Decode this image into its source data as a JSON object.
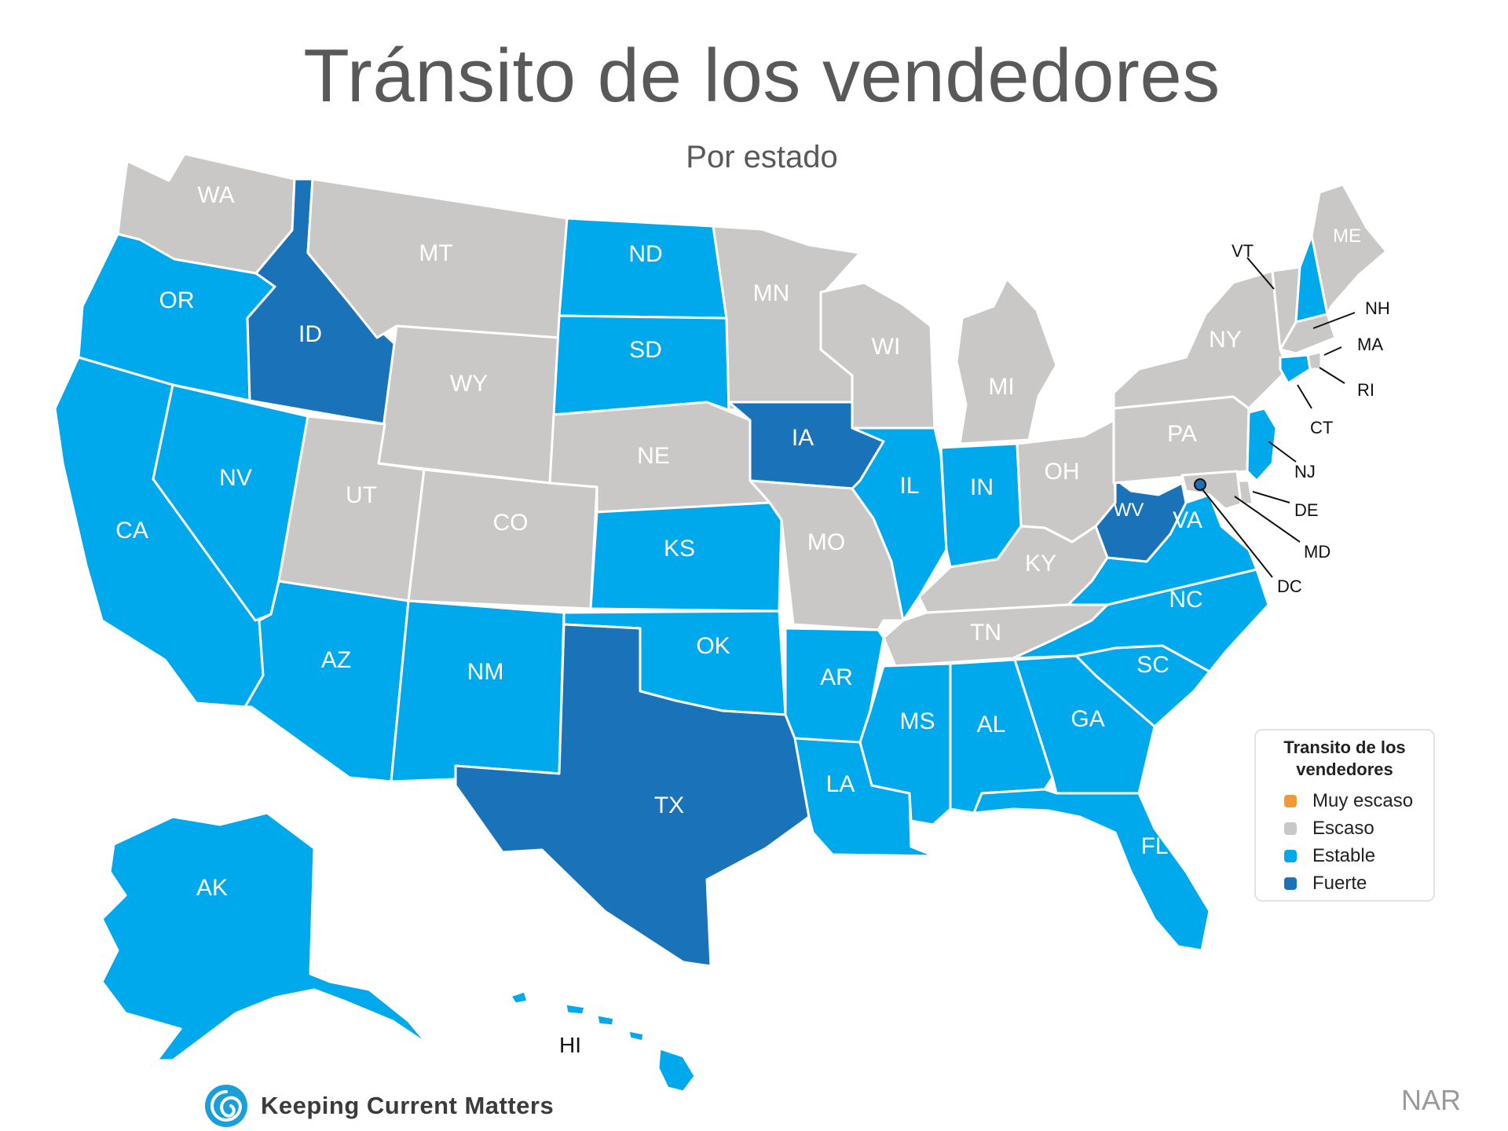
{
  "title": "Tránsito de los vendedores",
  "subtitle": "Por estado",
  "colors": {
    "muy_escaso": "#f19b38",
    "escaso": "#c9c8c7",
    "estable": "#00a9ec",
    "fuerte": "#1a72b8"
  },
  "legend": {
    "title": "Transito de los vendedores",
    "items": [
      {
        "label": "Muy escaso",
        "category": "muy_escaso"
      },
      {
        "label": "Escaso",
        "category": "escaso"
      },
      {
        "label": "Estable",
        "category": "estable"
      },
      {
        "label": "Fuerte",
        "category": "fuerte"
      }
    ]
  },
  "states": {
    "WA": "escaso",
    "OR": "estable",
    "CA": "estable",
    "ID": "fuerte",
    "NV": "estable",
    "MT": "escaso",
    "WY": "escaso",
    "UT": "escaso",
    "AZ": "estable",
    "CO": "escaso",
    "NM": "estable",
    "ND": "estable",
    "SD": "estable",
    "NE": "escaso",
    "KS": "estable",
    "OK": "estable",
    "TX": "fuerte",
    "MN": "escaso",
    "IA": "fuerte",
    "MO": "escaso",
    "AR": "estable",
    "LA": "estable",
    "WI": "escaso",
    "IL": "estable",
    "MI": "escaso",
    "IN": "estable",
    "OH": "escaso",
    "KY": "escaso",
    "TN": "escaso",
    "MS": "estable",
    "AL": "estable",
    "GA": "estable",
    "FL": "estable",
    "SC": "estable",
    "NC": "estable",
    "VA": "estable",
    "WV": "fuerte",
    "PA": "escaso",
    "NY": "escaso",
    "VT": "escaso",
    "NH": "estable",
    "ME": "escaso",
    "MA": "escaso",
    "RI": "escaso",
    "CT": "estable",
    "NJ": "estable",
    "DE": "escaso",
    "MD": "escaso",
    "DC": "fuerte",
    "AK": "estable",
    "HI": "estable"
  },
  "state_labels": [
    "WA",
    "OR",
    "CA",
    "ID",
    "NV",
    "MT",
    "WY",
    "UT",
    "AZ",
    "CO",
    "NM",
    "ND",
    "SD",
    "NE",
    "KS",
    "OK",
    "TX",
    "MN",
    "IA",
    "MO",
    "AR",
    "LA",
    "WI",
    "IL",
    "MI",
    "IN",
    "OH",
    "KY",
    "TN",
    "MS",
    "AL",
    "GA",
    "FL",
    "SC",
    "NC",
    "VA",
    "WV",
    "PA",
    "NY",
    "ME",
    "AK"
  ],
  "callout_labels": [
    "VT",
    "NH",
    "MA",
    "RI",
    "CT",
    "NJ",
    "DE",
    "MD",
    "DC",
    "HI"
  ],
  "logo_text": "Keeping Current Matters",
  "source": "NAR"
}
